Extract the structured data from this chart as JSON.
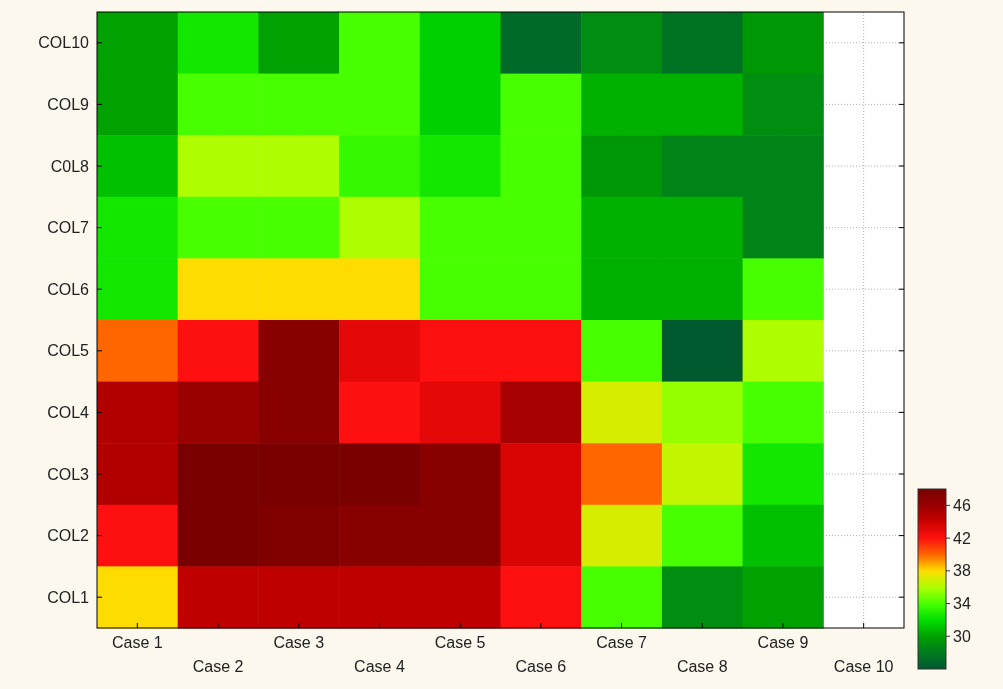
{
  "chart_data": {
    "type": "heatmap",
    "categories": [
      "Case 1",
      "Case 2",
      "Case 3",
      "Case 4",
      "Case 5",
      "Case 6",
      "Case 7",
      "Case 8",
      "Case 9",
      "Case 10"
    ],
    "y_categories": [
      "COL10",
      "COL9",
      "C0L8",
      "COL7",
      "COL6",
      "COL5",
      "COL4",
      "COL3",
      "COL2",
      "COL1"
    ],
    "cells": [
      [
        30,
        32.5,
        30,
        34,
        31.5,
        27,
        29,
        27.5,
        29.5,
        null
      ],
      [
        30,
        34,
        34,
        34,
        31.5,
        34,
        30.5,
        30.5,
        29,
        null
      ],
      [
        31,
        36,
        36,
        33.5,
        32.5,
        34,
        29.5,
        28.5,
        28.5,
        null
      ],
      [
        32.5,
        34,
        34,
        36,
        34,
        34,
        30.5,
        30.5,
        28.5,
        null
      ],
      [
        32.5,
        38,
        38,
        38,
        34,
        34,
        30.5,
        30.5,
        34,
        null
      ],
      [
        40,
        42,
        47,
        43,
        42,
        42,
        34,
        26,
        36,
        null
      ],
      [
        45,
        46,
        47,
        42,
        43,
        45.5,
        37,
        35.5,
        34,
        null
      ],
      [
        45,
        48,
        48,
        48,
        47,
        43.5,
        40,
        36.5,
        32.5,
        null
      ],
      [
        42,
        48,
        47.5,
        47,
        47,
        43.5,
        37,
        34,
        31,
        null
      ],
      [
        38,
        44.5,
        44.5,
        44.5,
        44.5,
        42,
        34,
        29,
        30,
        null
      ]
    ],
    "clim": [
      26,
      48
    ],
    "cticks": [
      30,
      34,
      38,
      42,
      46
    ],
    "grid": true
  }
}
